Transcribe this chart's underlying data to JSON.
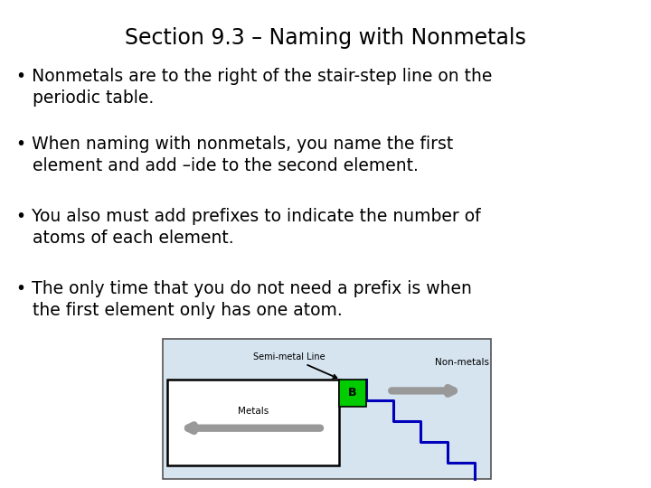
{
  "title": "Section 9.3 – Naming with Nonmetals",
  "title_fontsize": 17,
  "bullets": [
    "• Nonmetals are to the right of the stair-step line on the\n   periodic table.",
    "• When naming with nonmetals, you name the first\n   element and add –ide to the second element.",
    "• You also must add prefixes to indicate the number of\n   atoms of each element.",
    "• The only time that you do not need a prefix is when\n   the first element only has one atom."
  ],
  "bullet_fontsize": 13.5,
  "background_color": "#ffffff",
  "diagram": {
    "outer_bg": "#d6e4f0",
    "stair_color": "#0000bb",
    "stair_lw": 2.2,
    "B_color": "#00cc00",
    "B_label": "B",
    "semi_metal_line_label": "Semi-metal Line",
    "metals_label": "Metals",
    "nonmetals_label": "Non-metals",
    "arrow_color": "#999999"
  }
}
